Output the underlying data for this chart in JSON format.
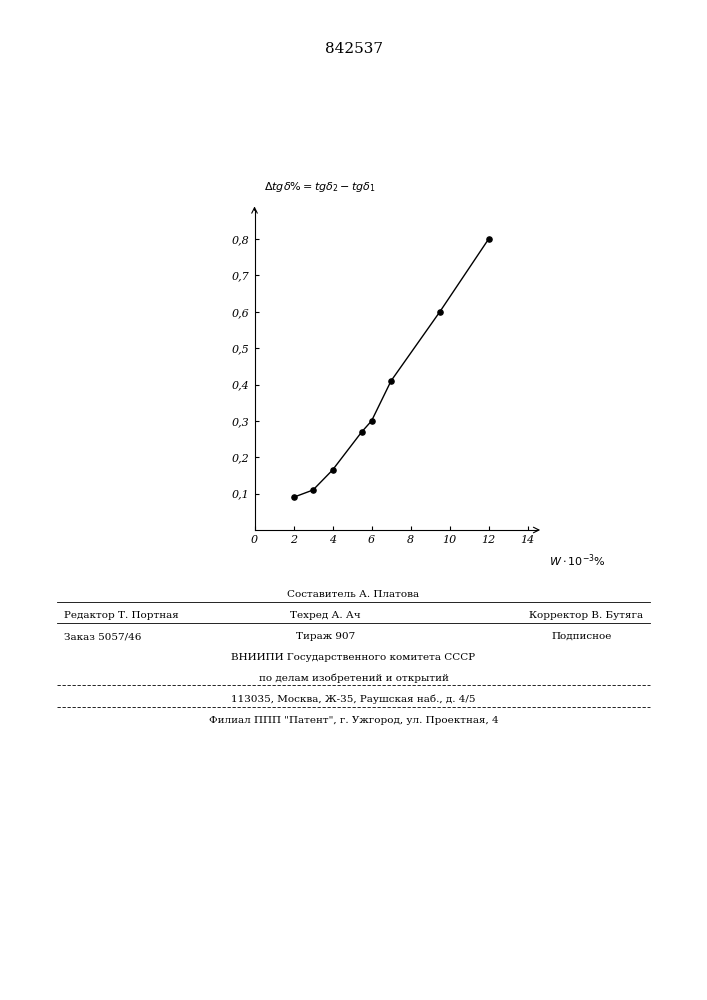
{
  "title": "842537",
  "x_data": [
    2.0,
    3.0,
    4.0,
    5.5,
    6.0,
    7.0,
    9.5,
    12.0
  ],
  "y_data": [
    0.09,
    0.11,
    0.165,
    0.27,
    0.3,
    0.41,
    0.6,
    0.8
  ],
  "xlim": [
    0,
    14.5
  ],
  "ylim": [
    0,
    0.88
  ],
  "xticks": [
    0,
    2,
    4,
    6,
    8,
    10,
    12,
    14
  ],
  "yticks": [
    0.1,
    0.2,
    0.3,
    0.4,
    0.5,
    0.6,
    0.7,
    0.8
  ],
  "color": "black",
  "marker_color": "black",
  "background": "white",
  "line1_text": "Составитель А. Платова",
  "line2a_text": "Редактор Т. Портная",
  "line2b_text": "Техред А. Ач",
  "line2c_text": "Корректор В. Бутяга",
  "line3a_text": "Заказ 5057/46",
  "line3b_text": "Тираж 907",
  "line3c_text": "Подписное",
  "line4_text": "ВНИИПИ Государственного комитета СССР",
  "line5_text": "по делам изобретений и открытий",
  "line6_text": "113035, Москва, Ж-35, Раушская наб., д. 4/5",
  "line7_text": "Филиал ППП \"Патент\", г. Ужгород, ул. Проектная, 4"
}
